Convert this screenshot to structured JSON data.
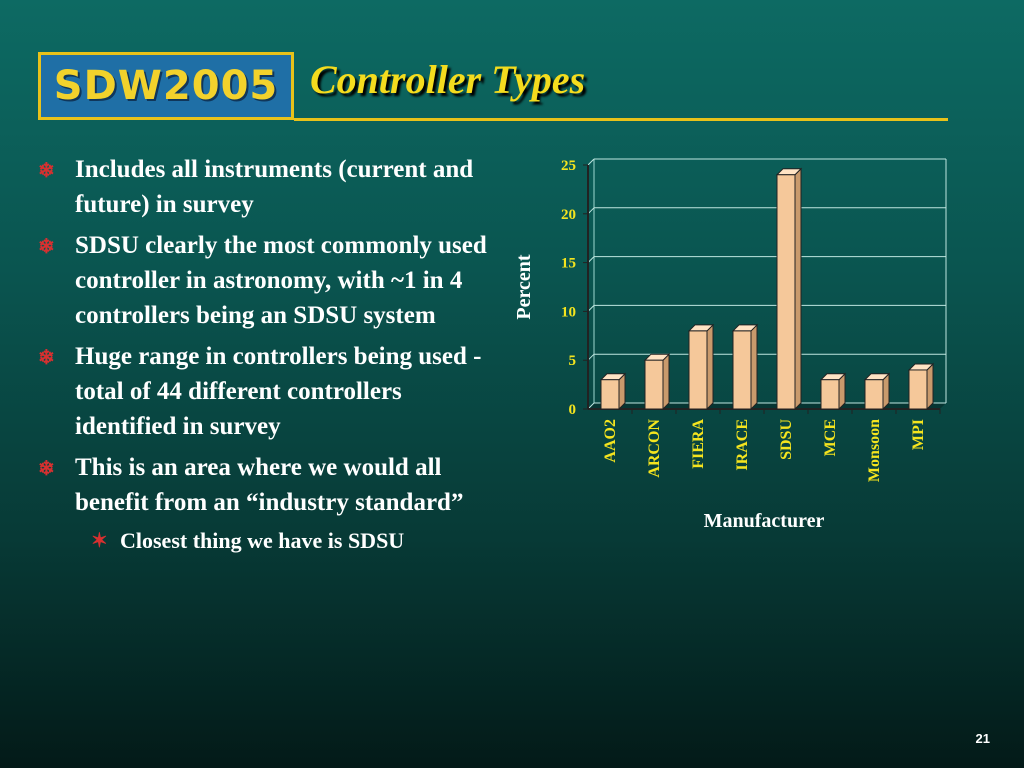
{
  "logo": {
    "text": "SDW2005"
  },
  "slide": {
    "title": "Controller Types",
    "page_number": "21"
  },
  "bullets": [
    "Includes all instruments (current and future) in survey",
    "SDSU clearly the most commonly used controller in astronomy, with ~1 in 4 controllers being an SDSU system",
    "Huge range in controllers being used - total of 44 different controllers identified in survey",
    "This is an area where we would all benefit from an “industry standard”"
  ],
  "sub_bullets": [
    "Closest thing we have is SDSU"
  ],
  "colors": {
    "title": "#f4dc1e",
    "bullet_marker": "#d83030",
    "bar": "#f5c89a",
    "tick_labels": "#f4e41e"
  },
  "chart_data": {
    "type": "bar",
    "categories": [
      "AAO2",
      "ARCON",
      "FIERA",
      "IRACE",
      "SDSU",
      "MCE",
      "Monsoon",
      "MPI"
    ],
    "values": [
      3,
      5,
      8,
      8,
      24,
      3,
      3,
      4
    ],
    "ylabel": "Percent",
    "xlabel": "Manufacturer",
    "ylim": [
      0,
      25
    ],
    "yticks": [
      "0",
      "5",
      "10",
      "15",
      "20",
      "25"
    ],
    "grid": true
  }
}
